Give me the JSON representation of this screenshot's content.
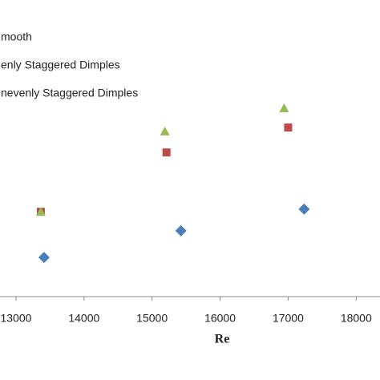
{
  "chart_data": {
    "type": "scatter",
    "xlabel": "Re",
    "xlim": [
      12765,
      18350
    ],
    "xticks": [
      13000,
      14000,
      15000,
      16000,
      17000,
      18000
    ],
    "ylim": [
      0,
      100
    ],
    "legend": "top-left",
    "series": [
      {
        "name": "mooth",
        "color": "#4a7ebb",
        "marker": "diamond",
        "x": [
          13412,
          15424,
          17235
        ],
        "values": [
          13.2,
          22.2,
          29.5
        ]
      },
      {
        "name": "enly Staggered Dimples",
        "color": "#be4b48",
        "marker": "square",
        "x": [
          13365,
          15212,
          17000
        ],
        "values": [
          28.6,
          48.6,
          57.0
        ]
      },
      {
        "name": "nevenly Staggered Dimples",
        "color": "#98b954",
        "marker": "triangle",
        "x": [
          13365,
          15188,
          16941
        ],
        "values": [
          28.6,
          55.7,
          63.5
        ]
      }
    ]
  }
}
